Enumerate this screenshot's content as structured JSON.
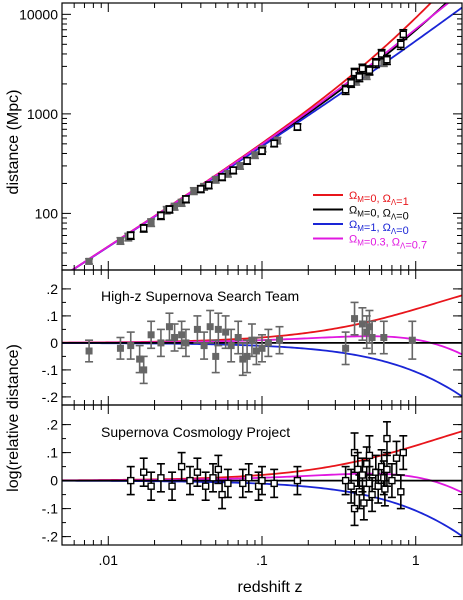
{
  "chart_data": {
    "type": "scatter",
    "x_scale": "log",
    "xlim": [
      0.005,
      2
    ],
    "xlabel": "redshift z",
    "x_ticks": [
      {
        "value": 0.01,
        "label": ".01"
      },
      {
        "value": 0.1,
        "label": ".1"
      },
      {
        "value": 1,
        "label": "1"
      }
    ],
    "colors": {
      "om0_ol1": "#e8151b",
      "om0_ol0": "#000000",
      "om1_ol0": "#1a25d6",
      "om03_ol07": "#e018e0",
      "hzt_points": "#666666",
      "scp_points": "#000000"
    },
    "panels": [
      {
        "id": "distance",
        "y_scale": "log",
        "ylim": [
          27,
          13000
        ],
        "ylabel": "distance (Mpc)",
        "y_ticks": [
          {
            "value": 100,
            "label": "100"
          },
          {
            "value": 1000,
            "label": "1000"
          },
          {
            "value": 10000,
            "label": "10000"
          }
        ],
        "legend": {
          "position": "bottom-right",
          "entries": [
            {
              "color_key": "om0_ol1",
              "om": "0",
              "ol": "1"
            },
            {
              "color_key": "om0_ol0",
              "om": "0",
              "ol": "0"
            },
            {
              "color_key": "om1_ol0",
              "om": "1",
              "ol": "0"
            },
            {
              "color_key": "om03_ol07",
              "om": "0.3",
              "ol": "0.7"
            }
          ]
        },
        "hzt_points": [
          {
            "z": 0.0075,
            "d": 33,
            "e": 2
          },
          {
            "z": 0.012,
            "d": 53,
            "e": 4
          },
          {
            "z": 0.0135,
            "d": 58,
            "e": 5
          },
          {
            "z": 0.019,
            "d": 81,
            "e": 7
          },
          {
            "z": 0.024,
            "d": 108,
            "e": 9
          },
          {
            "z": 0.027,
            "d": 117,
            "e": 9
          },
          {
            "z": 0.03,
            "d": 128,
            "e": 10
          },
          {
            "z": 0.036,
            "d": 168,
            "e": 13
          },
          {
            "z": 0.042,
            "d": 185,
            "e": 14
          },
          {
            "z": 0.05,
            "d": 218,
            "e": 16
          },
          {
            "z": 0.06,
            "d": 250,
            "e": 18
          },
          {
            "z": 0.072,
            "d": 300,
            "e": 22
          },
          {
            "z": 0.09,
            "d": 385,
            "e": 28
          },
          {
            "z": 0.101,
            "d": 445,
            "e": 30
          },
          {
            "z": 0.126,
            "d": 540,
            "e": 40
          },
          {
            "z": 0.41,
            "d": 2150,
            "e": 200
          },
          {
            "z": 0.48,
            "d": 2450,
            "e": 230
          },
          {
            "z": 0.5,
            "d": 2700,
            "e": 250
          },
          {
            "z": 0.62,
            "d": 3300,
            "e": 300
          }
        ],
        "scp_points": [
          {
            "z": 0.014,
            "d": 60,
            "e": 5
          },
          {
            "z": 0.017,
            "d": 71,
            "e": 6
          },
          {
            "z": 0.022,
            "d": 95,
            "e": 8
          },
          {
            "z": 0.025,
            "d": 110,
            "e": 9
          },
          {
            "z": 0.032,
            "d": 139,
            "e": 11
          },
          {
            "z": 0.04,
            "d": 176,
            "e": 14
          },
          {
            "z": 0.045,
            "d": 192,
            "e": 15
          },
          {
            "z": 0.055,
            "d": 232,
            "e": 18
          },
          {
            "z": 0.065,
            "d": 271,
            "e": 21
          },
          {
            "z": 0.08,
            "d": 338,
            "e": 26
          },
          {
            "z": 0.1,
            "d": 425,
            "e": 32
          },
          {
            "z": 0.12,
            "d": 505,
            "e": 38
          },
          {
            "z": 0.17,
            "d": 740,
            "e": 55
          },
          {
            "z": 0.35,
            "d": 1750,
            "e": 180
          },
          {
            "z": 0.38,
            "d": 2050,
            "e": 200
          },
          {
            "z": 0.4,
            "d": 2600,
            "e": 260
          },
          {
            "z": 0.43,
            "d": 2350,
            "e": 240
          },
          {
            "z": 0.45,
            "d": 2850,
            "e": 300
          },
          {
            "z": 0.5,
            "d": 2750,
            "e": 280
          },
          {
            "z": 0.55,
            "d": 3250,
            "e": 330
          },
          {
            "z": 0.6,
            "d": 4000,
            "e": 420
          },
          {
            "z": 0.65,
            "d": 3500,
            "e": 360
          },
          {
            "z": 0.8,
            "d": 5000,
            "e": 550
          },
          {
            "z": 0.83,
            "d": 6300,
            "e": 700
          }
        ]
      },
      {
        "id": "hzt_residuals",
        "title": "High-z Supernova Search Team",
        "y_scale": "linear",
        "ylim": [
          -0.23,
          0.27
        ],
        "y_ticks": [
          {
            "value": 0.2,
            "label": ".2"
          },
          {
            "value": 0.1,
            "label": ".1"
          },
          {
            "value": 0,
            "label": "0"
          },
          {
            "value": -0.1,
            "label": "-.1"
          },
          {
            "value": -0.2,
            "label": "-.2"
          }
        ],
        "points": [
          {
            "z": 0.0075,
            "r": -0.03,
            "e": 0.04
          },
          {
            "z": 0.012,
            "r": -0.02,
            "e": 0.04
          },
          {
            "z": 0.014,
            "r": -0.01,
            "e": 0.05
          },
          {
            "z": 0.016,
            "r": -0.06,
            "e": 0.05
          },
          {
            "z": 0.017,
            "r": -0.1,
            "e": 0.05
          },
          {
            "z": 0.019,
            "r": 0.03,
            "e": 0.05
          },
          {
            "z": 0.022,
            "r": 0.0,
            "e": 0.05
          },
          {
            "z": 0.025,
            "r": 0.06,
            "e": 0.05
          },
          {
            "z": 0.027,
            "r": 0.02,
            "e": 0.05
          },
          {
            "z": 0.03,
            "r": 0.03,
            "e": 0.05
          },
          {
            "z": 0.032,
            "r": 0.0,
            "e": 0.05
          },
          {
            "z": 0.038,
            "r": 0.05,
            "e": 0.05
          },
          {
            "z": 0.042,
            "r": -0.01,
            "e": 0.05
          },
          {
            "z": 0.046,
            "r": 0.06,
            "e": 0.06
          },
          {
            "z": 0.05,
            "r": -0.05,
            "e": 0.06
          },
          {
            "z": 0.052,
            "r": 0.05,
            "e": 0.06
          },
          {
            "z": 0.058,
            "r": 0.04,
            "e": 0.06
          },
          {
            "z": 0.063,
            "r": -0.01,
            "e": 0.06
          },
          {
            "z": 0.07,
            "r": 0.02,
            "e": 0.06
          },
          {
            "z": 0.075,
            "r": -0.06,
            "e": 0.06
          },
          {
            "z": 0.08,
            "r": -0.05,
            "e": 0.06
          },
          {
            "z": 0.086,
            "r": 0.01,
            "e": 0.06
          },
          {
            "z": 0.092,
            "r": -0.03,
            "e": 0.05
          },
          {
            "z": 0.1,
            "r": -0.02,
            "e": 0.05
          },
          {
            "z": 0.11,
            "r": 0.0,
            "e": 0.05
          },
          {
            "z": 0.13,
            "r": 0.01,
            "e": 0.05
          },
          {
            "z": 0.35,
            "r": -0.02,
            "e": 0.06
          },
          {
            "z": 0.4,
            "r": 0.09,
            "e": 0.06
          },
          {
            "z": 0.45,
            "r": 0.07,
            "e": 0.06
          },
          {
            "z": 0.48,
            "r": 0.04,
            "e": 0.06
          },
          {
            "z": 0.5,
            "r": 0.06,
            "e": 0.06
          },
          {
            "z": 0.52,
            "r": 0.02,
            "e": 0.06
          },
          {
            "z": 0.62,
            "r": 0.02,
            "e": 0.06
          },
          {
            "z": 0.95,
            "r": 0.01,
            "e": 0.07
          }
        ]
      },
      {
        "id": "scp_residuals",
        "title": "Supernova Cosmology Project",
        "y_scale": "linear",
        "ylim": [
          -0.23,
          0.27
        ],
        "y_ticks": [
          {
            "value": 0.2,
            "label": ".2"
          },
          {
            "value": 0.1,
            "label": ".1"
          },
          {
            "value": 0,
            "label": "0"
          },
          {
            "value": -0.1,
            "label": "-.1"
          },
          {
            "value": -0.2,
            "label": "-.2"
          }
        ],
        "points": [
          {
            "z": 0.014,
            "r": 0.0,
            "e": 0.05
          },
          {
            "z": 0.017,
            "r": 0.03,
            "e": 0.05
          },
          {
            "z": 0.019,
            "r": -0.02,
            "e": 0.05
          },
          {
            "z": 0.022,
            "r": 0.01,
            "e": 0.05
          },
          {
            "z": 0.026,
            "r": -0.02,
            "e": 0.05
          },
          {
            "z": 0.03,
            "r": 0.05,
            "e": 0.05
          },
          {
            "z": 0.034,
            "r": 0.0,
            "e": 0.05
          },
          {
            "z": 0.038,
            "r": 0.03,
            "e": 0.05
          },
          {
            "z": 0.043,
            "r": -0.02,
            "e": 0.05
          },
          {
            "z": 0.048,
            "r": 0.01,
            "e": 0.05
          },
          {
            "z": 0.052,
            "r": 0.04,
            "e": 0.05
          },
          {
            "z": 0.055,
            "r": -0.05,
            "e": 0.05
          },
          {
            "z": 0.06,
            "r": -0.01,
            "e": 0.05
          },
          {
            "z": 0.075,
            "r": -0.01,
            "e": 0.05
          },
          {
            "z": 0.082,
            "r": 0.01,
            "e": 0.05
          },
          {
            "z": 0.095,
            "r": -0.02,
            "e": 0.05
          },
          {
            "z": 0.1,
            "r": 0.0,
            "e": 0.05
          },
          {
            "z": 0.12,
            "r": -0.01,
            "e": 0.05
          },
          {
            "z": 0.17,
            "r": 0.0,
            "e": 0.05
          },
          {
            "z": 0.35,
            "r": 0.0,
            "e": 0.05
          },
          {
            "z": 0.38,
            "r": -0.02,
            "e": 0.06
          },
          {
            "z": 0.4,
            "r": -0.1,
            "e": 0.06
          },
          {
            "z": 0.4,
            "r": 0.1,
            "e": 0.07
          },
          {
            "z": 0.42,
            "r": 0.04,
            "e": 0.06
          },
          {
            "z": 0.43,
            "r": -0.04,
            "e": 0.06
          },
          {
            "z": 0.45,
            "r": 0.02,
            "e": 0.06
          },
          {
            "z": 0.46,
            "r": -0.08,
            "e": 0.06
          },
          {
            "z": 0.48,
            "r": 0.06,
            "e": 0.06
          },
          {
            "z": 0.5,
            "r": -0.01,
            "e": 0.06
          },
          {
            "z": 0.5,
            "r": 0.09,
            "e": 0.07
          },
          {
            "z": 0.52,
            "r": -0.05,
            "e": 0.06
          },
          {
            "z": 0.55,
            "r": 0.03,
            "e": 0.06
          },
          {
            "z": 0.57,
            "r": -0.02,
            "e": 0.06
          },
          {
            "z": 0.6,
            "r": 0.05,
            "e": 0.06
          },
          {
            "z": 0.62,
            "r": 0.01,
            "e": 0.06
          },
          {
            "z": 0.63,
            "r": -0.03,
            "e": 0.06
          },
          {
            "z": 0.65,
            "r": 0.04,
            "e": 0.06
          },
          {
            "z": 0.65,
            "r": 0.15,
            "e": 0.06
          },
          {
            "z": 0.7,
            "r": 0.0,
            "e": 0.06
          },
          {
            "z": 0.75,
            "r": 0.08,
            "e": 0.06
          },
          {
            "z": 0.8,
            "r": -0.04,
            "e": 0.06
          },
          {
            "z": 0.83,
            "r": 0.1,
            "e": 0.06
          }
        ]
      }
    ]
  }
}
